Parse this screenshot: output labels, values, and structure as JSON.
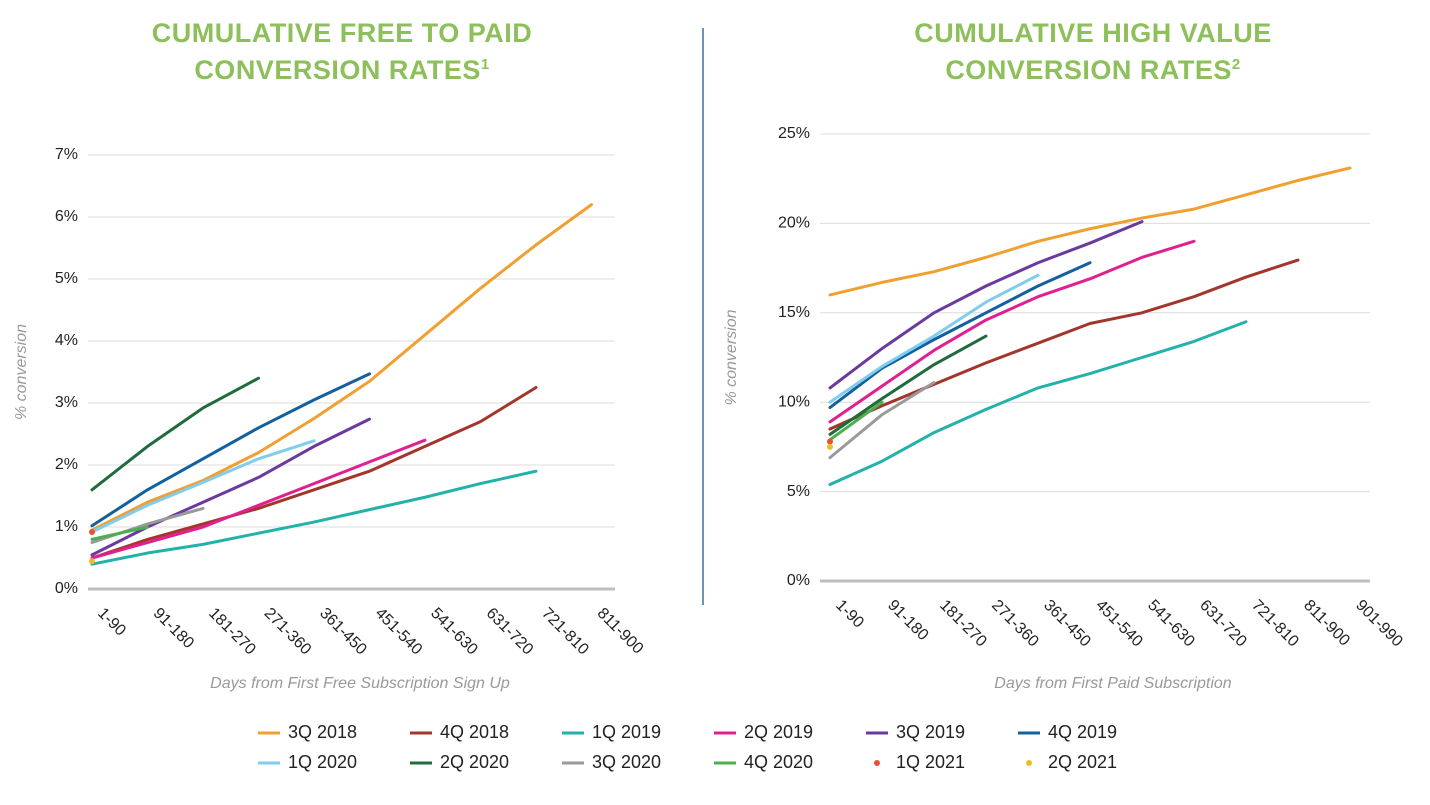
{
  "legend": [
    {
      "name": "3Q 2018",
      "color": "#f0a030"
    },
    {
      "name": "4Q 2018",
      "color": "#a3362c"
    },
    {
      "name": "1Q 2019",
      "color": "#22b2aa"
    },
    {
      "name": "2Q 2019",
      "color": "#e0208f"
    },
    {
      "name": "3Q 2019",
      "color": "#6b3a9e"
    },
    {
      "name": "4Q 2019",
      "color": "#135f9f"
    },
    {
      "name": "1Q 2020",
      "color": "#80cdee"
    },
    {
      "name": "2Q 2020",
      "color": "#1f6b3d"
    },
    {
      "name": "3Q 2020",
      "color": "#9a9a9a"
    },
    {
      "name": "4Q 2020",
      "color": "#4caf50"
    },
    {
      "name": "1Q 2021",
      "color": "#e8503a"
    },
    {
      "name": "2Q 2021",
      "color": "#e8c020"
    }
  ],
  "chart_data": [
    {
      "type": "line",
      "title": "CUMULATIVE FREE TO PAID CONVERSION RATES",
      "title_note": "1",
      "y_label": "% conversion",
      "x_label": "Days from First Free Subscription Sign Up",
      "categories": [
        "1-90",
        "91-180",
        "181-270",
        "271-360",
        "361-450",
        "451-540",
        "541-630",
        "631-720",
        "721-810",
        "811-900"
      ],
      "ylim": [
        0,
        7
      ],
      "yticks": [
        {
          "value": 0,
          "label": "0%"
        },
        {
          "value": 1,
          "label": "1%"
        },
        {
          "value": 2,
          "label": "2%"
        },
        {
          "value": 3,
          "label": "3%"
        },
        {
          "value": 4,
          "label": "4%"
        },
        {
          "value": 5,
          "label": "5%"
        },
        {
          "value": 6,
          "label": "6%"
        },
        {
          "value": 7,
          "label": "7%"
        }
      ],
      "grid": true,
      "series": [
        {
          "values": [
            0.95,
            1.4,
            1.75,
            2.2,
            2.75,
            3.35,
            4.1,
            4.85,
            5.55,
            6.2
          ]
        },
        {
          "values": [
            0.5,
            0.8,
            1.05,
            1.3,
            1.6,
            1.9,
            2.3,
            2.7,
            3.25,
            null
          ]
        },
        {
          "values": [
            0.4,
            0.58,
            0.72,
            0.9,
            1.08,
            1.28,
            1.48,
            1.7,
            1.9,
            null
          ]
        },
        {
          "values": [
            0.5,
            0.75,
            1.0,
            1.35,
            1.7,
            2.05,
            2.4,
            null,
            null,
            null
          ]
        },
        {
          "values": [
            0.55,
            1.0,
            1.4,
            1.8,
            2.3,
            2.74,
            null,
            null,
            null,
            null
          ]
        },
        {
          "values": [
            1.02,
            1.6,
            2.1,
            2.6,
            3.05,
            3.47,
            null,
            null,
            null,
            null
          ]
        },
        {
          "values": [
            0.92,
            1.35,
            1.72,
            2.1,
            2.39,
            null,
            null,
            null,
            null,
            null
          ]
        },
        {
          "values": [
            1.6,
            2.3,
            2.92,
            3.4,
            null,
            null,
            null,
            null,
            null,
            null
          ]
        },
        {
          "values": [
            0.75,
            1.05,
            1.3,
            null,
            null,
            null,
            null,
            null,
            null,
            null
          ]
        },
        {
          "values": [
            0.8,
            1.0,
            null,
            null,
            null,
            null,
            null,
            null,
            null,
            null
          ]
        },
        {
          "values": [
            0.92,
            null,
            null,
            null,
            null,
            null,
            null,
            null,
            null,
            null
          ]
        },
        {
          "values": [
            0.45,
            null,
            null,
            null,
            null,
            null,
            null,
            null,
            null,
            null
          ]
        }
      ]
    },
    {
      "type": "line",
      "title": "CUMULATIVE HIGH VALUE CONVERSION RATES",
      "title_note": "2",
      "y_label": "% conversion",
      "x_label": "Days from First Paid Subscription",
      "categories": [
        "1-90",
        "91-180",
        "181-270",
        "271-360",
        "361-450",
        "451-540",
        "541-630",
        "631-720",
        "721-810",
        "811-900",
        "901-990"
      ],
      "ylim": [
        0,
        25
      ],
      "yticks": [
        {
          "value": 0,
          "label": "0%"
        },
        {
          "value": 5,
          "label": "5%"
        },
        {
          "value": 10,
          "label": "10%"
        },
        {
          "value": 15,
          "label": "15%"
        },
        {
          "value": 20,
          "label": "20%"
        },
        {
          "value": 25,
          "label": "25%"
        }
      ],
      "grid": true,
      "series": [
        {
          "values": [
            16.0,
            16.7,
            17.3,
            18.1,
            19.0,
            19.7,
            20.3,
            20.8,
            21.6,
            22.4,
            23.1
          ]
        },
        {
          "values": [
            8.5,
            9.8,
            11.0,
            12.2,
            13.3,
            14.4,
            15.0,
            15.9,
            17.0,
            17.95,
            null
          ]
        },
        {
          "values": [
            5.4,
            6.7,
            8.3,
            9.6,
            10.8,
            11.6,
            12.5,
            13.4,
            14.5,
            null,
            null
          ]
        },
        {
          "values": [
            8.9,
            10.9,
            12.9,
            14.6,
            15.9,
            16.9,
            18.1,
            19.0,
            null,
            null,
            null
          ]
        },
        {
          "values": [
            10.8,
            13.0,
            15.0,
            16.5,
            17.8,
            18.9,
            20.1,
            null,
            null,
            null,
            null
          ]
        },
        {
          "values": [
            9.7,
            11.9,
            13.5,
            15.0,
            16.5,
            17.8,
            null,
            null,
            null,
            null,
            null
          ]
        },
        {
          "values": [
            10.0,
            12.0,
            13.7,
            15.6,
            17.1,
            null,
            null,
            null,
            null,
            null,
            null
          ]
        },
        {
          "values": [
            8.2,
            10.2,
            12.1,
            13.7,
            null,
            null,
            null,
            null,
            null,
            null,
            null
          ]
        },
        {
          "values": [
            6.9,
            9.3,
            11.1,
            null,
            null,
            null,
            null,
            null,
            null,
            null,
            null
          ]
        },
        {
          "values": [
            7.9,
            10.0,
            null,
            null,
            null,
            null,
            null,
            null,
            null,
            null,
            null
          ]
        },
        {
          "values": [
            7.8,
            null,
            null,
            null,
            null,
            null,
            null,
            null,
            null,
            null,
            null
          ]
        },
        {
          "values": [
            7.5,
            null,
            null,
            null,
            null,
            null,
            null,
            null,
            null,
            null,
            null
          ]
        }
      ]
    }
  ]
}
